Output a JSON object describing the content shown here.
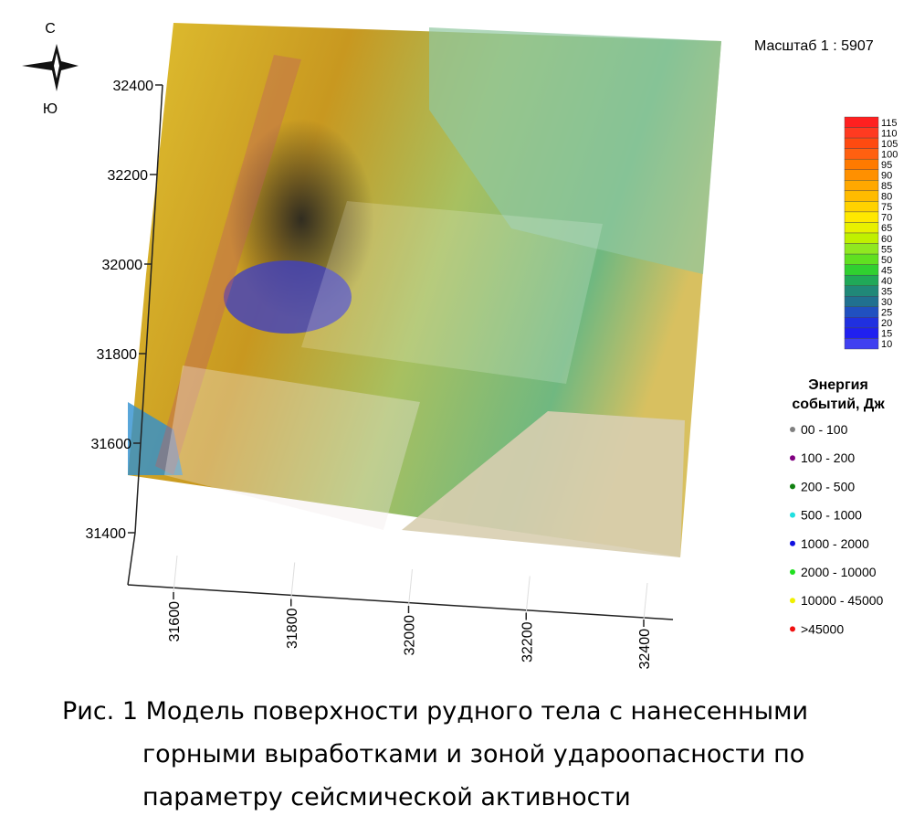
{
  "compass": {
    "north": "С",
    "south": "Ю"
  },
  "scale": "Масштаб  1 : 5907",
  "map": {
    "yticks": [
      32400,
      32200,
      32000,
      31800,
      31600,
      31400
    ],
    "xticks": [
      31600,
      31800,
      32000,
      32200,
      32400
    ]
  },
  "colorbar": {
    "levels": [
      115,
      110,
      105,
      100,
      95,
      90,
      85,
      80,
      75,
      70,
      65,
      60,
      55,
      50,
      45,
      40,
      35,
      30,
      25,
      20,
      15,
      10
    ],
    "colors": [
      "#ff2020",
      "#ff3a20",
      "#ff4a10",
      "#ff6010",
      "#ff7a00",
      "#ff9000",
      "#ffa800",
      "#ffbb00",
      "#ffd200",
      "#ffe800",
      "#e8f000",
      "#c0f000",
      "#90e820",
      "#60e020",
      "#30d030",
      "#20a858",
      "#208878",
      "#207090",
      "#2050c0",
      "#2030e0",
      "#2020f0",
      "#4040f0"
    ]
  },
  "legend": {
    "title": [
      "Энергия",
      "событий, Дж"
    ],
    "items": [
      {
        "label": "00 - 100",
        "color": "#808080"
      },
      {
        "label": "100 - 200",
        "color": "#800080"
      },
      {
        "label": "200 - 500",
        "color": "#108010"
      },
      {
        "label": "500 - 1000",
        "color": "#20e0e0"
      },
      {
        "label": "1000 - 2000",
        "color": "#1010e0"
      },
      {
        "label": "2000 - 10000",
        "color": "#20e020"
      },
      {
        "label": "10000 - 45000",
        "color": "#f0f000"
      },
      {
        "label": ">45000",
        "color": "#f01010"
      }
    ]
  },
  "caption": [
    "Рис. 1 Модель поверхности рудного тела с нанесенными",
    "горными выработками и зоной удароопасности по",
    "параметру сейсмической активности"
  ]
}
